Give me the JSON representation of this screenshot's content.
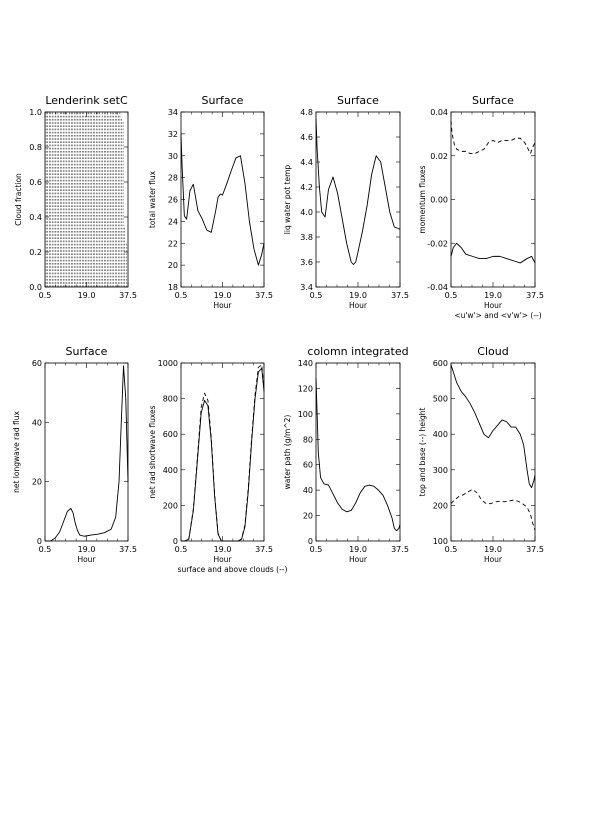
{
  "chart_data": [
    {
      "type": "line",
      "title": "Lenderink setC",
      "xlabel": "",
      "ylabel": "Cloud fraction",
      "xlim": [
        0.5,
        37.5
      ],
      "ylim": [
        0.0,
        1.0
      ],
      "xticks": [
        "0.5",
        "19.0",
        "37.5"
      ],
      "yticks": [
        "0.0",
        "0.2",
        "0.4",
        "0.6",
        "0.8",
        "1.0"
      ],
      "yticks_num": [
        0,
        0.2,
        0.4,
        0.6,
        0.8,
        1.0
      ],
      "style": "vertical-dashes",
      "x": [
        1.0,
        1.7,
        2.4,
        3.1,
        3.8,
        4.5,
        5.2,
        5.9,
        6.6,
        7.3,
        8.0,
        8.7,
        9.4,
        10.1,
        10.8,
        11.5,
        12.2,
        12.9,
        13.6,
        14.3,
        15.0,
        15.7,
        16.4,
        17.1,
        17.8,
        18.5,
        19.2,
        19.9,
        20.6,
        21.3,
        22.0,
        22.7,
        23.4,
        24.1,
        24.8,
        25.5,
        26.2,
        26.9,
        27.6,
        28.3,
        29.0,
        29.7,
        30.4,
        31.1,
        31.8,
        32.5,
        33.2,
        33.9,
        34.6,
        35.3,
        36.0,
        36.7
      ],
      "y": [
        1.0,
        1.0,
        1.0,
        1.0,
        1.0,
        0.98,
        1.0,
        1.0,
        0.99,
        1.0,
        1.0,
        1.0,
        1.0,
        1.0,
        0.99,
        1.0,
        1.0,
        1.0,
        1.0,
        0.98,
        1.0,
        1.0,
        1.0,
        1.0,
        1.0,
        0.98,
        1.0,
        1.0,
        1.0,
        1.0,
        0.99,
        1.0,
        1.0,
        1.0,
        1.0,
        0.97,
        1.0,
        1.0,
        1.0,
        1.0,
        0.98,
        1.0,
        1.0,
        1.0,
        1.0,
        1.0,
        0.98,
        1.0,
        0.97,
        0.95,
        0.35,
        0.25
      ]
    },
    {
      "type": "line",
      "title": "Surface",
      "xlabel": "Hour",
      "ylabel": "total water flux",
      "xlim": [
        0.5,
        37.5
      ],
      "ylim": [
        18,
        34
      ],
      "xticks": [
        "0.5",
        "19.0",
        "37.5"
      ],
      "yticks": [
        "18",
        "20",
        "22",
        "24",
        "26",
        "28",
        "30",
        "32",
        "34"
      ],
      "yticks_num": [
        18,
        20,
        22,
        24,
        26,
        28,
        30,
        32,
        34
      ],
      "series": [
        {
          "x": [
            0.5,
            1.0,
            2.0,
            3.0,
            4.5,
            6.0,
            8.0,
            10.0,
            12.0,
            14.0,
            16.0,
            17.0,
            18.0,
            19.0,
            21.0,
            23.0,
            25.0,
            27.0,
            29.0,
            31.0,
            33.0,
            35.0,
            36.5,
            37.5
          ],
          "y": [
            32.0,
            29.0,
            24.5,
            24.2,
            26.8,
            27.4,
            25.0,
            24.2,
            23.2,
            23.0,
            25.0,
            26.2,
            26.5,
            26.4,
            27.5,
            28.7,
            29.8,
            30.0,
            27.5,
            24.0,
            21.5,
            20.0,
            21.0,
            22.0
          ],
          "dash": false
        }
      ]
    },
    {
      "type": "line",
      "title": "Surface",
      "xlabel": "Hour",
      "ylabel": "liq water pot temp",
      "xlim": [
        0.5,
        37.5
      ],
      "ylim": [
        3.4,
        4.8
      ],
      "xticks": [
        "0.5",
        "19.0",
        "37.5"
      ],
      "yticks": [
        "3.4",
        "3.6",
        "3.8",
        "4.0",
        "4.2",
        "4.4",
        "4.6",
        "4.8"
      ],
      "yticks_num": [
        3.4,
        3.6,
        3.8,
        4.0,
        4.2,
        4.4,
        4.6,
        4.8
      ],
      "series": [
        {
          "x": [
            0.5,
            1.0,
            2.0,
            3.0,
            4.5,
            6.0,
            8.0,
            10.0,
            12.0,
            14.0,
            16.0,
            17.0,
            18.0,
            19.0,
            21.0,
            23.0,
            25.0,
            27.0,
            29.0,
            31.0,
            33.0,
            35.0,
            36.5,
            37.5
          ],
          "y": [
            4.75,
            4.5,
            4.2,
            4.0,
            3.96,
            4.18,
            4.28,
            4.15,
            3.95,
            3.75,
            3.6,
            3.58,
            3.6,
            3.68,
            3.85,
            4.05,
            4.3,
            4.45,
            4.4,
            4.2,
            4.0,
            3.88,
            3.87,
            3.86
          ],
          "dash": false
        }
      ]
    },
    {
      "type": "line",
      "title": "Surface",
      "xlabel": "Hour",
      "xlabel2": "<u'w'> and <v'w'> (--)",
      "ylabel": "momentum fluxes",
      "xlim": [
        0.5,
        37.5
      ],
      "ylim": [
        -0.04,
        0.04
      ],
      "xticks": [
        "0.5",
        "19.0",
        "37.5"
      ],
      "yticks": [
        "-0.04",
        "-0.02",
        "0.00",
        "0.02",
        "0.04"
      ],
      "yticks_num": [
        -0.04,
        -0.02,
        0.0,
        0.02,
        0.04
      ],
      "series": [
        {
          "x": [
            0.5,
            1.5,
            3.0,
            5.0,
            7.0,
            10.0,
            13.0,
            16.0,
            19.0,
            22.0,
            25.0,
            28.0,
            31.0,
            34.0,
            36.0,
            37.5
          ],
          "y": [
            -0.026,
            -0.022,
            -0.02,
            -0.022,
            -0.025,
            -0.026,
            -0.027,
            -0.027,
            -0.026,
            -0.026,
            -0.027,
            -0.028,
            -0.029,
            -0.027,
            -0.026,
            -0.029
          ],
          "dash": false
        },
        {
          "x": [
            0.5,
            1.0,
            2.0,
            3.0,
            5.0,
            7.0,
            9.0,
            11.0,
            13.0,
            15.0,
            17.0,
            19.0,
            21.0,
            23.0,
            25.0,
            27.0,
            29.0,
            31.0,
            33.0,
            34.5,
            35.5,
            36.5,
            37.5
          ],
          "y": [
            0.036,
            0.03,
            0.025,
            0.023,
            0.022,
            0.022,
            0.021,
            0.021,
            0.022,
            0.023,
            0.026,
            0.027,
            0.026,
            0.027,
            0.027,
            0.027,
            0.028,
            0.028,
            0.026,
            0.023,
            0.021,
            0.024,
            0.026
          ],
          "dash": true
        }
      ]
    },
    {
      "type": "line",
      "title": "Surface",
      "xlabel": "Hour",
      "ylabel": "net longwave rad flux",
      "xlim": [
        0.5,
        37.5
      ],
      "ylim": [
        0,
        60
      ],
      "xticks": [
        "0.5",
        "19.0",
        "37.5"
      ],
      "yticks": [
        "0",
        "20",
        "40",
        "60"
      ],
      "yticks_num": [
        0,
        20,
        40,
        60
      ],
      "series": [
        {
          "x": [
            0.5,
            3.0,
            5.0,
            7.0,
            9.0,
            10.5,
            12.0,
            13.0,
            14.0,
            15.0,
            16.0,
            18.0,
            21.0,
            24.0,
            27.0,
            30.0,
            32.0,
            33.5,
            34.5,
            35.5,
            36.5,
            37.5
          ],
          "y": [
            0,
            0,
            1,
            3,
            7,
            10,
            11,
            9.5,
            6,
            3.5,
            2.0,
            1.6,
            2.0,
            2.3,
            2.8,
            4.0,
            8.0,
            20.0,
            40.0,
            59.0,
            48.0,
            20.0
          ],
          "dash": false
        }
      ]
    },
    {
      "type": "line",
      "title": "",
      "xlabel": "Hour",
      "xlabel2": "surface and above clouds (--)",
      "ylabel": "net rad shortwave fluxes",
      "xlim": [
        0.5,
        37.5
      ],
      "ylim": [
        0,
        1000
      ],
      "xticks": [
        "0.5",
        "19.0",
        "37.5"
      ],
      "yticks": [
        "0",
        "200",
        "400",
        "600",
        "800",
        "1000"
      ],
      "yticks_num": [
        0,
        200,
        400,
        600,
        800,
        1000
      ],
      "series": [
        {
          "x": [
            0.5,
            2.0,
            4.0,
            6.0,
            8.0,
            9.5,
            11.0,
            12.5,
            14.0,
            15.5,
            17.0,
            18.5,
            20.0,
            22.0,
            24.0,
            26.0,
            27.5,
            29.0,
            30.5,
            32.0,
            33.5,
            35.0,
            36.5,
            37.5
          ],
          "y": [
            0,
            0,
            10,
            170,
            480,
            720,
            790,
            760,
            560,
            250,
            40,
            0,
            0,
            0,
            0,
            0,
            10,
            80,
            280,
            560,
            800,
            950,
            970,
            840
          ],
          "dash": false
        },
        {
          "x": [
            0.5,
            2.0,
            4.0,
            6.0,
            8.0,
            9.5,
            11.0,
            12.5,
            14.0,
            15.5,
            17.0,
            18.5,
            20.0,
            22.0,
            24.0,
            26.0,
            27.5,
            29.0,
            30.5,
            32.0,
            33.5,
            35.0,
            36.5,
            37.5
          ],
          "y": [
            0,
            0,
            12,
            180,
            500,
            750,
            830,
            790,
            580,
            260,
            45,
            0,
            0,
            0,
            0,
            0,
            12,
            90,
            300,
            580,
            820,
            975,
            990,
            860
          ],
          "dash": true
        }
      ]
    },
    {
      "type": "line",
      "title": "colomn integrated",
      "xlabel": "Hour",
      "ylabel": "water path (g/m^2)",
      "xlim": [
        0.5,
        37.5
      ],
      "ylim": [
        0,
        140
      ],
      "xticks": [
        "0.5",
        "19.0",
        "37.5"
      ],
      "yticks": [
        "0",
        "20",
        "40",
        "60",
        "80",
        "100",
        "120",
        "140"
      ],
      "yticks_num": [
        0,
        20,
        40,
        60,
        80,
        100,
        120,
        140
      ],
      "series": [
        {
          "x": [
            0.5,
            1.0,
            1.5,
            2.5,
            4.0,
            6.0,
            8.0,
            10.0,
            12.0,
            14.0,
            16.0,
            18.0,
            20.0,
            22.0,
            24.0,
            26.0,
            28.0,
            30.0,
            32.0,
            34.0,
            35.0,
            36.0,
            37.0,
            37.5
          ],
          "y": [
            128,
            100,
            70,
            50,
            45,
            44,
            37,
            30,
            25,
            23,
            24,
            30,
            38,
            43,
            44,
            43,
            40,
            36,
            28,
            18,
            10,
            8,
            10,
            13
          ],
          "dash": false
        }
      ]
    },
    {
      "type": "line",
      "title": "Cloud",
      "xlabel": "Hour",
      "ylabel": "top and base (--) height",
      "xlim": [
        0.5,
        37.5
      ],
      "ylim": [
        100,
        600
      ],
      "xticks": [
        "0.5",
        "19.0",
        "37.5"
      ],
      "yticks": [
        "100",
        "200",
        "300",
        "400",
        "500",
        "600"
      ],
      "yticks_num": [
        100,
        200,
        300,
        400,
        500,
        600
      ],
      "series": [
        {
          "x": [
            0.5,
            1.5,
            3.0,
            5.0,
            7.0,
            9.0,
            11.0,
            13.0,
            15.0,
            17.0,
            19.0,
            21.0,
            23.0,
            25.0,
            27.0,
            29.0,
            31.0,
            32.5,
            34.0,
            35.0,
            36.0,
            37.0,
            37.5
          ],
          "y": [
            595,
            575,
            545,
            520,
            505,
            485,
            460,
            430,
            400,
            390,
            410,
            425,
            440,
            435,
            420,
            420,
            400,
            370,
            300,
            260,
            250,
            270,
            285
          ],
          "dash": false
        },
        {
          "x": [
            0.5,
            2.0,
            4.0,
            6.0,
            8.0,
            10.0,
            12.0,
            14.0,
            16.0,
            18.0,
            20.0,
            22.0,
            24.0,
            26.0,
            28.0,
            30.0,
            32.0,
            34.0,
            35.5,
            36.5,
            37.5
          ],
          "y": [
            205,
            215,
            225,
            230,
            238,
            245,
            235,
            215,
            205,
            205,
            210,
            212,
            210,
            212,
            215,
            212,
            205,
            195,
            175,
            150,
            130
          ],
          "dash": true
        }
      ]
    }
  ]
}
